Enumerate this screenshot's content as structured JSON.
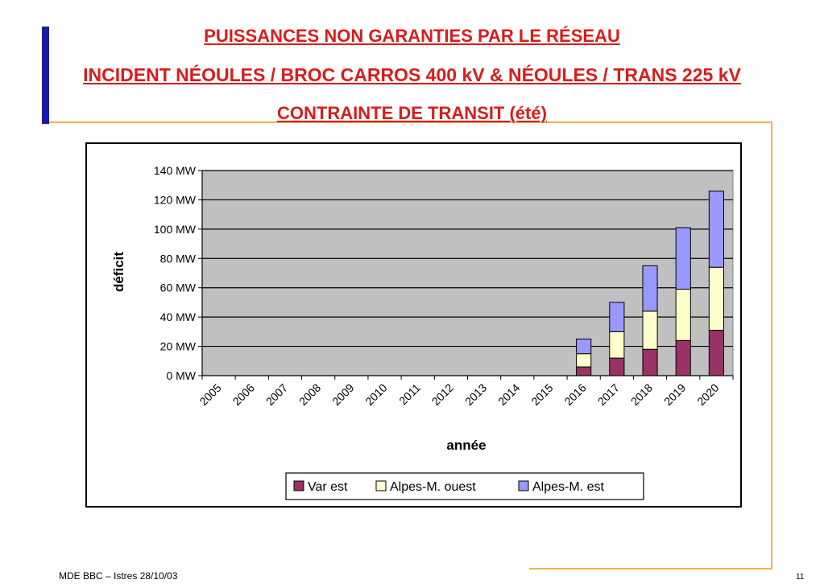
{
  "title": {
    "line1": "PUISSANCES NON GARANTIES PAR LE RÉSEAU",
    "line2": "INCIDENT NÉOULES / BROC CARROS 400 kV & NÉOULES / TRANS 225 kV",
    "line3": "CONTRAINTE DE TRANSIT (été)"
  },
  "footer": {
    "left": "MDE BBC – Istres 28/10/03",
    "page_number": "11"
  },
  "colors": {
    "title": "#d81c1c",
    "plot_bg": "#c0c0c0",
    "var_est": "#993366",
    "alpes_ouest": "#ffffcc",
    "alpes_est": "#9999ff"
  },
  "chart_data": {
    "type": "bar",
    "stacked": true,
    "categories": [
      "2005",
      "2006",
      "2007",
      "2008",
      "2009",
      "2010",
      "2011",
      "2012",
      "2013",
      "2014",
      "2015",
      "2016",
      "2017",
      "2018",
      "2019",
      "2020"
    ],
    "series": [
      {
        "name": "Var est",
        "color": "#993366",
        "values": [
          0,
          0,
          0,
          0,
          0,
          0,
          0,
          0,
          0,
          0,
          0,
          6,
          12,
          18,
          24,
          31
        ]
      },
      {
        "name": "Alpes-M. ouest",
        "color": "#ffffcc",
        "values": [
          0,
          0,
          0,
          0,
          0,
          0,
          0,
          0,
          0,
          0,
          0,
          9,
          18,
          26,
          35,
          43
        ]
      },
      {
        "name": "Alpes-M. est",
        "color": "#9999ff",
        "values": [
          0,
          0,
          0,
          0,
          0,
          0,
          0,
          0,
          0,
          0,
          0,
          10,
          20,
          31,
          42,
          52
        ]
      }
    ],
    "xlabel": "année",
    "ylabel": "déficit",
    "ylim": [
      0,
      140
    ],
    "yticks": [
      0,
      20,
      40,
      60,
      80,
      100,
      120,
      140
    ],
    "ytick_labels": [
      "0 MW",
      "20 MW",
      "40 MW",
      "60 MW",
      "80 MW",
      "100 MW",
      "120 MW",
      "140 MW"
    ],
    "grid": true,
    "legend_position": "bottom-right"
  }
}
